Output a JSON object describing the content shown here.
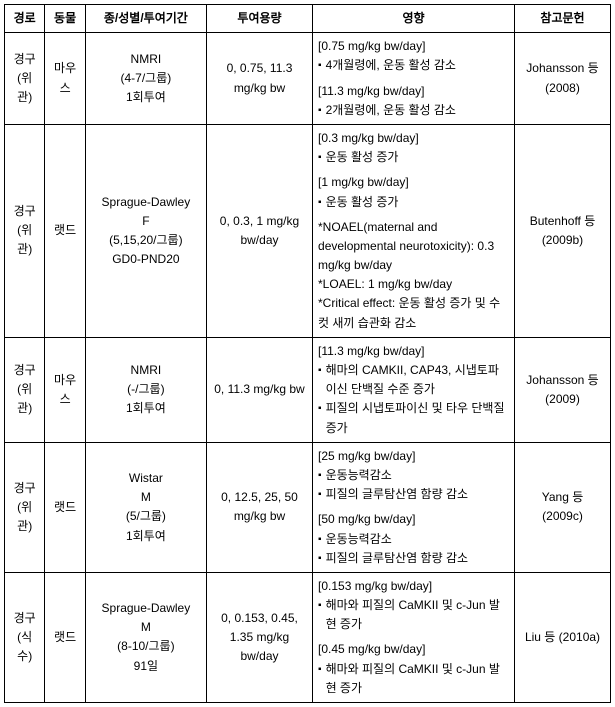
{
  "headers": {
    "route": "경로",
    "animal": "동물",
    "species": "종/성별/투여기간",
    "dose": "투여용량",
    "effect": "영향",
    "ref": "참고문헌"
  },
  "rows": [
    {
      "route": "경구(위관)",
      "animal": "마우스",
      "species_l1": "NMRI",
      "species_l2": "(4-7/그룹)",
      "species_l3": "1회투여",
      "dose": "0, 0.75, 11.3 mg/kg bw",
      "effect": {
        "b1_h": "[0.75 mg/kg bw/day]",
        "b1_i1": "4개월령에, 운동 활성 감소",
        "b2_h": "[11.3 mg/kg bw/day]",
        "b2_i1": "2개월령에, 운동 활성 감소"
      },
      "ref": "Johansson 등 (2008)"
    },
    {
      "route": "경구(위관)",
      "animal": "랫드",
      "species_l1": "Sprague-Dawley",
      "species_l2": "F",
      "species_l3": "(5,15,20/그룹)",
      "species_l4": "GD0-PND20",
      "dose": "0, 0.3, 1 mg/kg bw/day",
      "effect": {
        "b1_h": "[0.3 mg/kg bw/day]",
        "b1_i1": "운동 활성 증가",
        "b2_h": "[1 mg/kg bw/day]",
        "b2_i1": "운동 활성 증가",
        "n1": "*NOAEL(maternal and developmental neurotoxicity): 0.3 mg/kg bw/day",
        "n2": "*LOAEL: 1 mg/kg bw/day",
        "n3": "*Critical effect: 운동 활성 증가 및 수컷 새끼 습관화 감소"
      },
      "ref": "Butenhoff 등 (2009b)"
    },
    {
      "route": "경구(위관)",
      "animal": "마우스",
      "species_l1": "NMRI",
      "species_l2": "(-/그룹)",
      "species_l3": "1회투여",
      "dose": "0, 11.3 mg/kg bw",
      "effect": {
        "b1_h": "[11.3 mg/kg bw/day]",
        "b1_i1": "해마의 CAMKII, CAP43, 시냅토파이신 단백질 수준 증가",
        "b1_i2": "피질의 시냅토파이신 및 타우 단백질 증가"
      },
      "ref": "Johansson 등 (2009)"
    },
    {
      "route": "경구(위관)",
      "animal": "랫드",
      "species_l1": "Wistar",
      "species_l2": "M",
      "species_l3": "(5/그룹)",
      "species_l4": "1회투여",
      "dose": "0, 12.5, 25, 50 mg/kg bw",
      "effect": {
        "b1_h": "[25 mg/kg bw/day]",
        "b1_i1": "운동능력감소",
        "b1_i2": "피질의 글루탐산염 함량 감소",
        "b2_h": "[50 mg/kg bw/day]",
        "b2_i1": "운동능력감소",
        "b2_i2": "피질의 글루탐산염 함량 감소"
      },
      "ref": "Yang 등 (2009c)"
    },
    {
      "route": "경구(식수)",
      "animal": "랫드",
      "species_l1": "Sprague-Dawley",
      "species_l2": "M",
      "species_l3": "(8-10/그룹)",
      "species_l4": "91일",
      "dose": "0, 0.153, 0.45, 1.35 mg/kg bw/day",
      "effect": {
        "b1_h": "[0.153 mg/kg bw/day]",
        "b1_i1": "해마와 피질의 CaMKII 및 c-Jun 발현 증가",
        "b2_h": "[0.45 mg/kg bw/day]",
        "b2_i1": "해마와 피질의 CaMKII 및 c-Jun 발현 증가"
      },
      "ref": "Liu 등 (2010a)"
    }
  ]
}
